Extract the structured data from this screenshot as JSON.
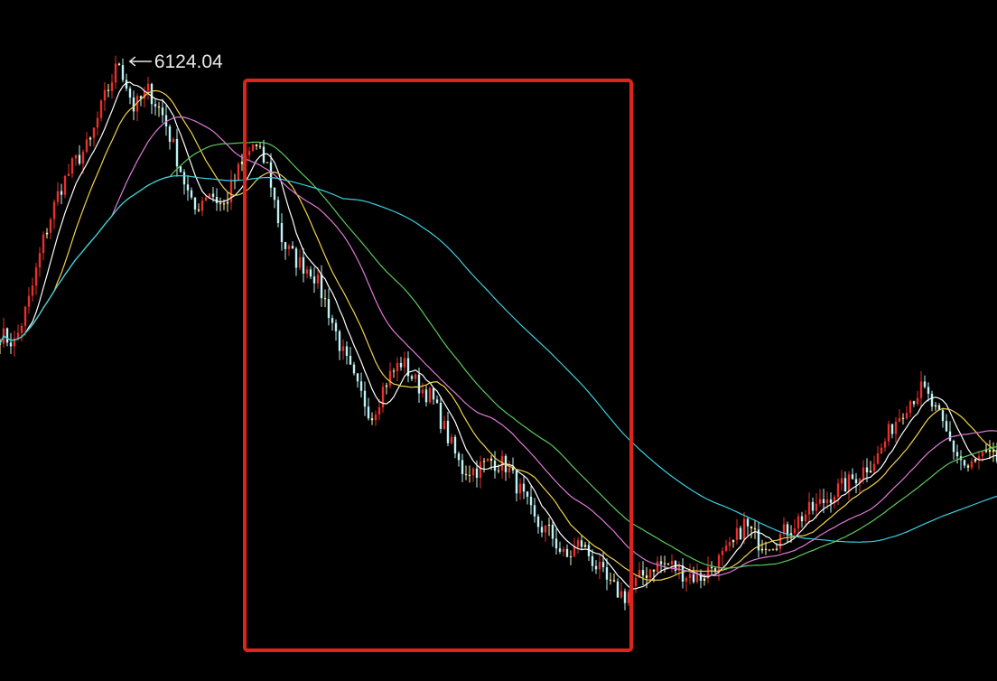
{
  "chart_data": {
    "type": "line",
    "subtype": "candlestick-with-moving-averages",
    "title": "",
    "xlabel": "",
    "ylabel": "",
    "grid": false,
    "axes_visible": false,
    "background": "#000000",
    "ylim": [
      956,
      6636
    ],
    "peak_label": "6124.04",
    "peak_value": 6124.04,
    "close_path": [
      3849,
      3773,
      4150,
      4677,
      5054,
      5280,
      5431,
      5808,
      6124.04,
      5732,
      5883,
      5657,
      5280,
      4866,
      5054,
      4904,
      5205,
      5431,
      5243,
      4602,
      4451,
      4376,
      4075,
      3698,
      3397,
      3171,
      3472,
      3623,
      3434,
      3321,
      3020,
      2719,
      2719,
      2794,
      2756,
      2530,
      2267,
      2191,
      1965,
      2116,
      1928,
      1739,
      1664,
      1815,
      1928,
      1928,
      1852,
      1815,
      1928,
      2041,
      2267,
      2116,
      2116,
      2229,
      2342,
      2417,
      2530,
      2606,
      2719,
      2832,
      3095,
      3284,
      3397,
      3171,
      2907,
      2719,
      2832,
      2794
    ],
    "moving_averages": [
      {
        "window": 5,
        "color": "#ffffff"
      },
      {
        "window": 10,
        "color": "#f2d24a"
      },
      {
        "window": 20,
        "color": "#e07ad8"
      },
      {
        "window": 30,
        "color": "#5ec85e"
      },
      {
        "window": 60,
        "color": "#3ccfe0"
      }
    ],
    "candle_colors": {
      "up": "#e8302c",
      "down": "#bff3f5",
      "neutral": "#fff3b0"
    },
    "highlight": {
      "color": "#e0231c",
      "label": ""
    }
  }
}
